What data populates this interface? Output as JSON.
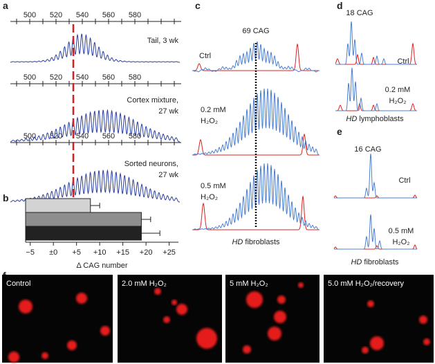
{
  "panels": {
    "a": {
      "label": "a",
      "axis_ticks": [
        "500",
        "520",
        "540",
        "560",
        "580"
      ],
      "samples": [
        {
          "lines": [
            "Tail, 3 wk"
          ]
        },
        {
          "lines": [
            "Cortex mixture,",
            "27 wk"
          ]
        },
        {
          "lines": [
            "Sorted neurons,",
            "27 wk"
          ]
        }
      ]
    },
    "b": {
      "label": "b"
    },
    "c": {
      "label": "c",
      "repeat": "69 CAG",
      "conditions": [
        {
          "lines": [
            "Ctrl"
          ]
        },
        {
          "lines": [
            "0.2 mM",
            "H₂O₂"
          ]
        },
        {
          "lines": [
            "0.5 mM",
            "H₂O₂"
          ]
        }
      ],
      "cell_italic": "HD",
      "cell": "fibroblasts"
    },
    "d": {
      "label": "d",
      "repeat": "18 CAG",
      "conditions": [
        {
          "lines": [
            "Ctrl"
          ]
        },
        {
          "lines": [
            "0.2 mM",
            "H₂O₂"
          ]
        }
      ],
      "cell_italic": "HD",
      "cell": "lymphoblasts"
    },
    "e": {
      "label": "e",
      "repeat": "16 CAG",
      "conditions": [
        {
          "lines": [
            "Ctrl"
          ]
        },
        {
          "lines": [
            "0.5 mM",
            "H₂O₂"
          ]
        }
      ],
      "cell_italic": "HD",
      "cell": "fibroblasts"
    },
    "f": {
      "label": "f",
      "images": [
        "Control",
        "2.0 mM H₂O₂",
        "5 mM H₂O₂",
        "5.0 mM H₂O₂/recovery"
      ]
    }
  },
  "chart_data": {
    "type": "hbar",
    "values": [
      8,
      19,
      19
    ],
    "errors": [
      2,
      2,
      4
    ],
    "colors": [
      "#d3d3d3",
      "#8e8e8e",
      "#222222"
    ],
    "xlim": [
      -6,
      27
    ],
    "xticks": [
      {
        "value": -5,
        "label": "−5"
      },
      {
        "value": 0,
        "label": "±0"
      },
      {
        "value": 5,
        "label": "+5"
      },
      {
        "value": 10,
        "label": "+10"
      },
      {
        "value": 15,
        "label": "+15"
      },
      {
        "value": 20,
        "label": "+20"
      },
      {
        "value": 25,
        "label": "+25"
      }
    ],
    "xlabel": "Δ CAG number"
  }
}
